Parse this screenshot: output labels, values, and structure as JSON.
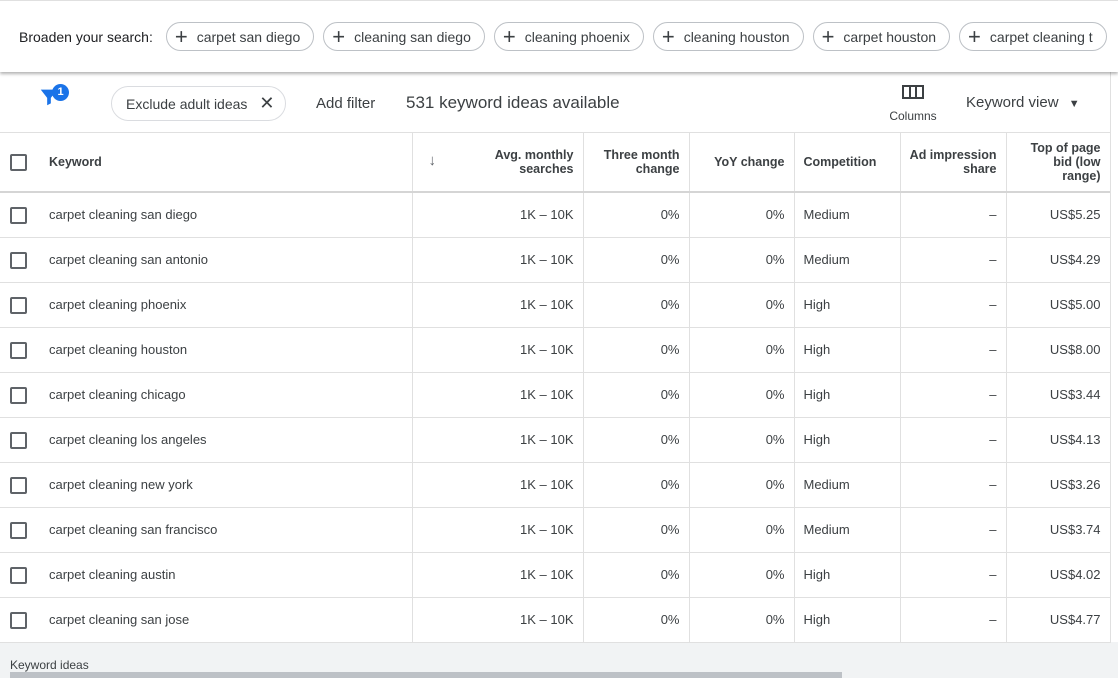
{
  "broaden": {
    "label": "Broaden your search:",
    "chips": [
      "carpet san diego",
      "cleaning san diego",
      "cleaning phoenix",
      "cleaning houston",
      "carpet houston",
      "carpet cleaning t"
    ]
  },
  "toolbar": {
    "filter_badge": "1",
    "exclude_chip": "Exclude adult ideas",
    "add_filter": "Add filter",
    "count": "531 keyword ideas available",
    "columns": "Columns",
    "view": "Keyword view"
  },
  "table": {
    "headers": [
      "Keyword",
      "Avg. monthly searches",
      "Three month change",
      "YoY change",
      "Competition",
      "Ad impression share",
      "Top of page bid (low range)"
    ],
    "rows": [
      [
        "carpet cleaning san diego",
        "1K – 10K",
        "0%",
        "0%",
        "Medium",
        "–",
        "US$5.25"
      ],
      [
        "carpet cleaning san antonio",
        "1K – 10K",
        "0%",
        "0%",
        "Medium",
        "–",
        "US$4.29"
      ],
      [
        "carpet cleaning phoenix",
        "1K – 10K",
        "0%",
        "0%",
        "High",
        "–",
        "US$5.00"
      ],
      [
        "carpet cleaning houston",
        "1K – 10K",
        "0%",
        "0%",
        "High",
        "–",
        "US$8.00"
      ],
      [
        "carpet cleaning chicago",
        "1K – 10K",
        "0%",
        "0%",
        "High",
        "–",
        "US$3.44"
      ],
      [
        "carpet cleaning los angeles",
        "1K – 10K",
        "0%",
        "0%",
        "High",
        "–",
        "US$4.13"
      ],
      [
        "carpet cleaning new york",
        "1K – 10K",
        "0%",
        "0%",
        "Medium",
        "–",
        "US$3.26"
      ],
      [
        "carpet cleaning san francisco",
        "1K – 10K",
        "0%",
        "0%",
        "Medium",
        "–",
        "US$3.74"
      ],
      [
        "carpet cleaning austin",
        "1K – 10K",
        "0%",
        "0%",
        "High",
        "–",
        "US$4.02"
      ],
      [
        "carpet cleaning san jose",
        "1K – 10K",
        "0%",
        "0%",
        "High",
        "–",
        "US$4.77"
      ]
    ]
  },
  "footer": "Keyword ideas",
  "colors": {
    "accent": "#1a73e8"
  }
}
